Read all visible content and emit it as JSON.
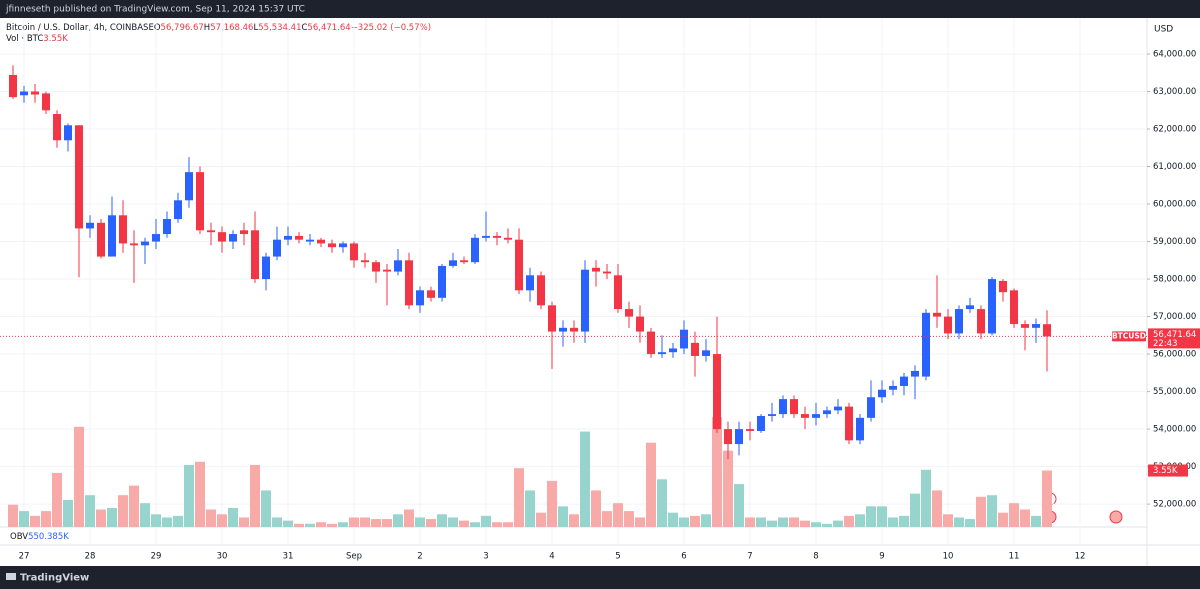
{
  "header": {
    "text": "jfinneseth published on TradingView.com, Sep 11, 2024 15:37 UTC"
  },
  "footer": {
    "brand": "TradingView"
  },
  "chart_data": {
    "type": "candlestick",
    "title": "Bitcoin / U.S. Dollar, 4h, COINBASE",
    "ohlc_legend": [
      {
        "key": "O",
        "value": "56,796.67"
      },
      {
        "key": "H",
        "value": "57,168.46"
      },
      {
        "key": "L",
        "value": "55,534.41"
      },
      {
        "key": "C",
        "value": "56,471.64"
      }
    ],
    "change": "−325.02 (−0.57%)",
    "currency": "USD",
    "symbol": "BTCUSD",
    "last_price_label": "56,471.64",
    "countdown": "22:43",
    "up_color": "#2962ff",
    "down_color": "#f23645",
    "ylim": [
      51390,
      64960
    ],
    "yticks": [
      {
        "value": 52000,
        "label": "52,000.00"
      },
      {
        "value": 53000,
        "label": "53,000.00"
      },
      {
        "value": 54000,
        "label": "54,000.00"
      },
      {
        "value": 55000,
        "label": "55,000.00"
      },
      {
        "value": 56000,
        "label": "56,000.00"
      },
      {
        "value": 57000,
        "label": "57,000.00"
      },
      {
        "value": 58000,
        "label": "58,000.00"
      },
      {
        "value": 59000,
        "label": "59,000.00"
      },
      {
        "value": 60000,
        "label": "60,000.00"
      },
      {
        "value": 61000,
        "label": "61,000.00"
      },
      {
        "value": 62000,
        "label": "62,000.00"
      },
      {
        "value": 63000,
        "label": "63,000.00"
      },
      {
        "value": 64000,
        "label": "64,000.00"
      }
    ],
    "grid": true,
    "day_labels": [
      "27",
      "28",
      "29",
      "30",
      "31",
      "Sep",
      "2",
      "3",
      "4",
      "5",
      "6",
      "7",
      "8",
      "9",
      "10",
      "11",
      "12"
    ],
    "open": [
      63440,
      62900,
      63000,
      62950,
      62400,
      61700,
      62100,
      59350,
      59500,
      58600,
      59700,
      58950,
      58900,
      59000,
      59200,
      59600,
      60100,
      60850,
      59300,
      59250,
      59000,
      59300,
      59300,
      58000,
      58600,
      59050,
      59150,
      59000,
      59050,
      58950,
      58850,
      58950,
      58500,
      58450,
      58250,
      58200,
      58500,
      57300,
      57700,
      57500,
      58350,
      58500,
      58450,
      59100,
      59150,
      59100,
      59050,
      57700,
      58100,
      57300,
      56600,
      56700,
      56600,
      58300,
      58200,
      58100,
      57200,
      57000,
      56600,
      56000,
      56050,
      56150,
      56300,
      55950,
      56000,
      54000,
      53600,
      54000,
      53950,
      54350,
      54400,
      54800,
      54400,
      54300,
      54400,
      54500,
      54600,
      53700,
      54300,
      54850,
      55050,
      55150,
      55400,
      55400,
      57100,
      57000,
      56550,
      57200,
      57200,
      56550,
      57950,
      57700,
      56800,
      56700,
      56796.67
    ],
    "close": [
      62850,
      63000,
      62920,
      62500,
      61700,
      62100,
      59350,
      59500,
      58600,
      59700,
      58950,
      58900,
      59000,
      59200,
      59600,
      60100,
      60850,
      59300,
      59250,
      59000,
      59200,
      59200,
      58000,
      58600,
      59050,
      59150,
      59050,
      59050,
      58950,
      58850,
      58950,
      58500,
      58450,
      58200,
      58200,
      58500,
      57300,
      57700,
      57500,
      58350,
      58500,
      58450,
      59100,
      59150,
      59100,
      59050,
      57700,
      58100,
      57300,
      56600,
      56700,
      56600,
      58250,
      58200,
      58150,
      57200,
      57000,
      56600,
      56000,
      56050,
      56150,
      56650,
      55950,
      56100,
      54000,
      53600,
      54000,
      53950,
      54350,
      54400,
      54800,
      54400,
      54300,
      54400,
      54500,
      54600,
      53700,
      54300,
      54850,
      55050,
      55150,
      55400,
      55550,
      57100,
      57000,
      56550,
      57200,
      57300,
      56550,
      58000,
      57650,
      56800,
      56700,
      56800,
      56471.64
    ],
    "high": [
      63700,
      63150,
      63200,
      63000,
      62500,
      62150,
      62100,
      59700,
      59600,
      60200,
      60100,
      59300,
      59100,
      59600,
      59800,
      60300,
      61250,
      61000,
      59500,
      59400,
      59300,
      59500,
      59800,
      58700,
      59400,
      59400,
      59250,
      59200,
      59100,
      59050,
      59000,
      59000,
      58700,
      58500,
      58400,
      58800,
      58700,
      57800,
      57800,
      58400,
      58700,
      58600,
      59200,
      59800,
      59250,
      59350,
      59350,
      58300,
      58200,
      57400,
      56900,
      56900,
      58500,
      58500,
      58400,
      58400,
      57400,
      57300,
      56700,
      56500,
      56300,
      56900,
      56600,
      56400,
      57000,
      54200,
      54200,
      54200,
      54400,
      54700,
      54900,
      54900,
      54600,
      54700,
      54600,
      54800,
      54700,
      54400,
      55300,
      55300,
      55300,
      55500,
      55700,
      57200,
      58100,
      57200,
      57300,
      57500,
      57300,
      58050,
      58000,
      57750,
      56900,
      56950,
      57168.46
    ],
    "low": [
      62800,
      62700,
      62700,
      62400,
      61500,
      61400,
      58050,
      59100,
      58550,
      58600,
      58700,
      57900,
      58400,
      58800,
      59100,
      59500,
      59900,
      59200,
      58900,
      58700,
      58800,
      58900,
      57900,
      57700,
      58500,
      58900,
      58950,
      58900,
      58850,
      58700,
      58700,
      58300,
      58300,
      57900,
      57300,
      58100,
      57200,
      57100,
      57400,
      57400,
      58300,
      58400,
      58400,
      59000,
      58900,
      58950,
      57600,
      57400,
      57200,
      55600,
      56200,
      56300,
      56300,
      57800,
      58000,
      57100,
      56700,
      56300,
      55900,
      55900,
      55900,
      56000,
      55400,
      55800,
      53900,
      53200,
      53300,
      53700,
      53900,
      54200,
      54300,
      54300,
      54000,
      54100,
      54300,
      54400,
      53600,
      53600,
      54200,
      54700,
      54900,
      54900,
      54800,
      55300,
      56700,
      56400,
      56400,
      57100,
      56400,
      56500,
      57400,
      56700,
      56100,
      56300,
      55534.41
    ],
    "volume": {
      "name": "Vol · BTC",
      "up_color": "#98d4ce",
      "down_color": "#f7aaa8",
      "ylim": [
        0,
        32
      ],
      "last_value_label": "3.55K",
      "values": [
        1.4,
        1.0,
        0.7,
        1.0,
        3.4,
        1.7,
        6.3,
        2.0,
        1.1,
        1.2,
        2.0,
        2.6,
        1.5,
        0.8,
        0.6,
        0.7,
        3.9,
        4.1,
        1.1,
        0.8,
        1.2,
        0.6,
        3.9,
        2.3,
        0.6,
        0.4,
        0.2,
        0.2,
        0.3,
        0.2,
        0.3,
        0.6,
        0.6,
        0.5,
        0.5,
        0.8,
        1.1,
        0.6,
        0.5,
        0.8,
        0.6,
        0.4,
        0.3,
        0.7,
        0.3,
        0.3,
        3.7,
        2.3,
        0.9,
        2.9,
        1.3,
        0.8,
        6.0,
        2.3,
        1.0,
        1.5,
        1.0,
        0.6,
        5.3,
        3.0,
        0.9,
        0.6,
        0.7,
        0.8,
        6.9,
        4.8,
        2.7,
        0.6,
        0.6,
        0.4,
        0.6,
        0.6,
        0.4,
        0.3,
        0.2,
        0.4,
        0.7,
        0.8,
        1.3,
        1.3,
        0.6,
        0.7,
        2.1,
        3.6,
        2.3,
        0.8,
        0.6,
        0.5,
        1.9,
        2.0,
        0.9,
        1.5,
        1.1,
        0.7,
        3.55
      ]
    },
    "obv": {
      "name": "OBV",
      "value_label": "550.385K"
    }
  }
}
